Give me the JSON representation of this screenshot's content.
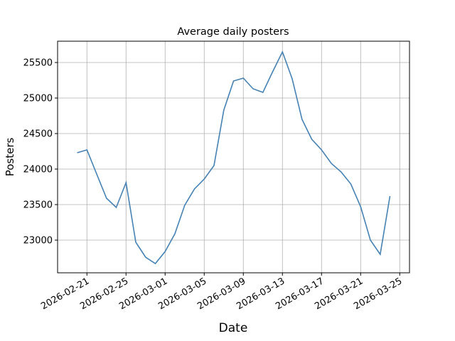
{
  "chart_data": {
    "type": "line",
    "title": "Average daily posters",
    "xlabel": "Date",
    "ylabel": "Posters",
    "x": [
      "2026-02-20",
      "2026-02-21",
      "2026-02-22",
      "2026-02-23",
      "2026-02-24",
      "2026-02-25",
      "2026-02-26",
      "2026-02-27",
      "2026-02-28",
      "2026-03-01",
      "2026-03-02",
      "2026-03-03",
      "2026-03-04",
      "2026-03-05",
      "2026-03-06",
      "2026-03-07",
      "2026-03-08",
      "2026-03-09",
      "2026-03-10",
      "2026-03-11",
      "2026-03-12",
      "2026-03-13",
      "2026-03-14",
      "2026-03-15",
      "2026-03-16",
      "2026-03-17",
      "2026-03-18",
      "2026-03-19",
      "2026-03-20",
      "2026-03-21",
      "2026-03-22",
      "2026-03-23",
      "2026-03-24"
    ],
    "series": [
      {
        "color": "#4682b4",
        "values": [
          24230,
          24270,
          23930,
          23590,
          23460,
          23810,
          22970,
          22760,
          22670,
          22840,
          23090,
          23490,
          23720,
          23860,
          24050,
          24830,
          25240,
          25280,
          25130,
          25080,
          25370,
          25650,
          25270,
          24700,
          24420,
          24270,
          24080,
          23960,
          23790,
          23470,
          23000,
          22800,
          23620
        ]
      }
    ],
    "xlim": [
      "2026-02-18",
      "2026-03-26"
    ],
    "xticks": [
      "2026-02-21",
      "2026-02-25",
      "2026-03-01",
      "2026-03-05",
      "2026-03-09",
      "2026-03-13",
      "2026-03-17",
      "2026-03-21",
      "2026-03-25"
    ],
    "ylim": [
      22540,
      25800
    ],
    "yticks": [
      23000,
      23500,
      24000,
      24500,
      25000,
      25500
    ],
    "grid": true
  }
}
